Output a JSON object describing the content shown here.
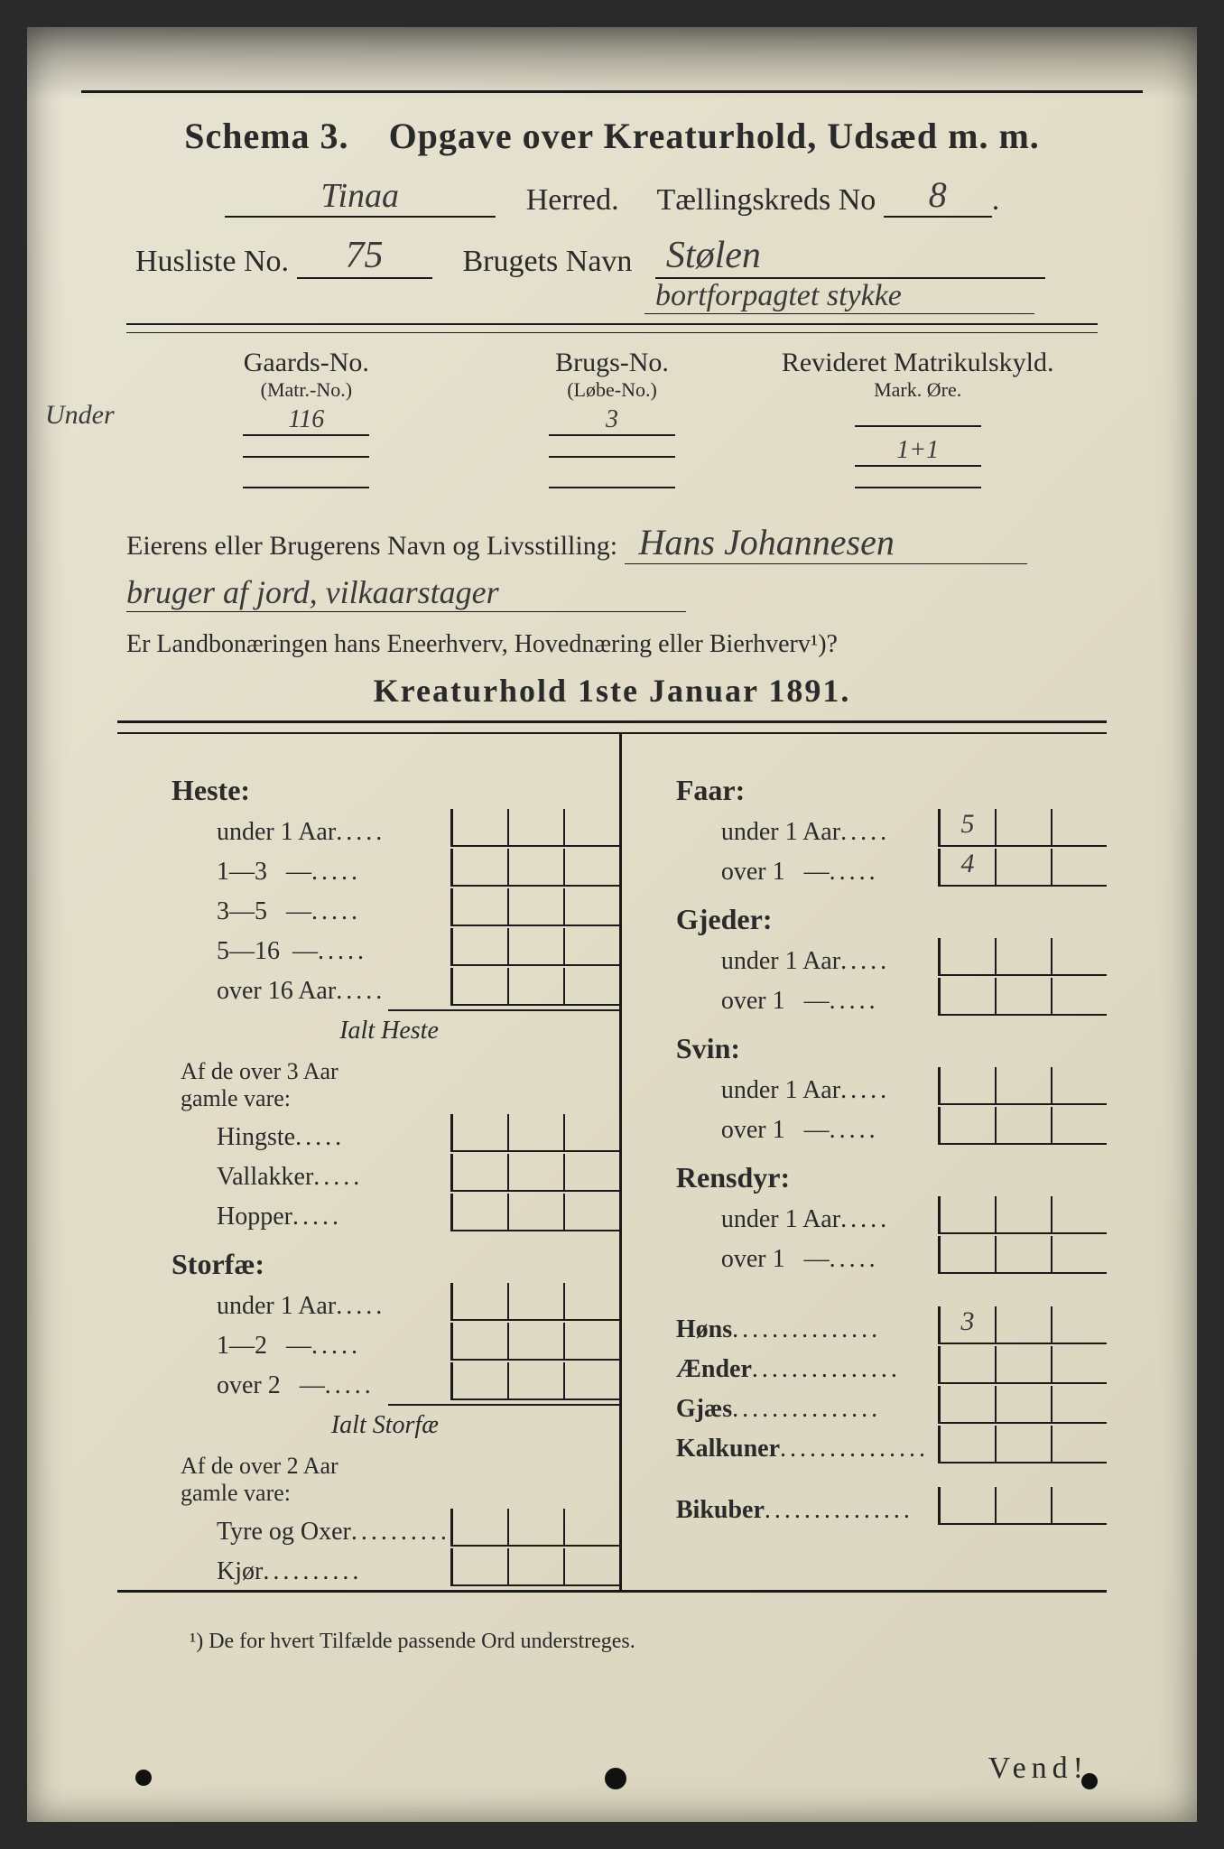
{
  "colors": {
    "paper_light": "#e8e4d4",
    "paper_dark": "#d9d4be",
    "ink": "#1a1a1a",
    "pencil": "#3a3a3a",
    "background": "#2a2a2a"
  },
  "header": {
    "schema": "Schema 3.",
    "title_rest": "Opgave over Kreaturhold, Udsæd m. m.",
    "herred_value": "Tinaa",
    "herred_label": "Herred.",
    "kreds_label": "Tællingskreds No",
    "kreds_value": "8",
    "husliste_label": "Husliste No.",
    "husliste_value": "75",
    "brugets_label": "Brugets Navn",
    "brugets_value": "Stølen",
    "brugets_value_extra": "bortforpagtet stykke"
  },
  "matrikul": {
    "col1_label": "Gaards-No.",
    "col1_sub": "(Matr.-No.)",
    "col2_label": "Brugs-No.",
    "col2_sub": "(Løbe-No.)",
    "col3_label": "Revideret Matrikulskyld.",
    "col3_sub": "Mark.  Øre.",
    "margin_note": "Under",
    "rows": [
      {
        "gaard": "116",
        "brug": "3",
        "skyld": ""
      },
      {
        "gaard": "",
        "brug": "",
        "skyld": "1+1"
      },
      {
        "gaard": "",
        "brug": "",
        "skyld": ""
      }
    ]
  },
  "owner": {
    "label": "Eierens eller Brugerens Navn og Livsstilling:",
    "value": "Hans Johannesen",
    "value_line2": "bruger af jord, vilkaarstager",
    "question": "Er Landbonæringen hans Eneerhverv, Hovednæring eller Bierhverv¹)?"
  },
  "section": {
    "title": "Kreaturhold 1ste Januar 1891."
  },
  "left": {
    "heste": {
      "label": "Heste:",
      "rows": [
        {
          "t": "under 1 Aar",
          "v": [
            "",
            "",
            ""
          ]
        },
        {
          "t": "1—3   —",
          "v": [
            "",
            "",
            ""
          ]
        },
        {
          "t": "3—5   —",
          "v": [
            "",
            "",
            ""
          ]
        },
        {
          "t": "5—16  —",
          "v": [
            "",
            "",
            ""
          ]
        },
        {
          "t": "over 16 Aar",
          "v": [
            "",
            "",
            ""
          ]
        }
      ],
      "sum": "Ialt Heste",
      "sub_label": "Af de over 3 Aar\ngamle vare:",
      "sub_rows": [
        {
          "t": "Hingste",
          "v": [
            "",
            "",
            ""
          ]
        },
        {
          "t": "Vallakker",
          "v": [
            "",
            "",
            ""
          ]
        },
        {
          "t": "Hopper",
          "v": [
            "",
            "",
            ""
          ]
        }
      ]
    },
    "storfae": {
      "label": "Storfæ:",
      "rows": [
        {
          "t": "under 1 Aar",
          "v": [
            "",
            "",
            ""
          ]
        },
        {
          "t": "1—2   —",
          "v": [
            "",
            "",
            ""
          ]
        },
        {
          "t": "over 2   —",
          "v": [
            "",
            "",
            ""
          ]
        }
      ],
      "sum": "Ialt Storfæ",
      "sub_label": "Af de over 2 Aar\ngamle vare:",
      "sub_rows": [
        {
          "t": "Tyre og Oxer",
          "v": [
            "",
            "",
            ""
          ]
        },
        {
          "t": "Kjør",
          "v": [
            "",
            "",
            ""
          ]
        }
      ]
    }
  },
  "right": {
    "faar": {
      "label": "Faar:",
      "rows": [
        {
          "t": "under 1 Aar",
          "v": [
            "5",
            "",
            ""
          ]
        },
        {
          "t": "over 1   —",
          "v": [
            "4",
            "",
            ""
          ]
        }
      ]
    },
    "gjeder": {
      "label": "Gjeder:",
      "rows": [
        {
          "t": "under 1 Aar",
          "v": [
            "",
            "",
            ""
          ]
        },
        {
          "t": "over 1   —",
          "v": [
            "",
            "",
            ""
          ]
        }
      ]
    },
    "svin": {
      "label": "Svin:",
      "rows": [
        {
          "t": "under 1 Aar",
          "v": [
            "",
            "",
            ""
          ]
        },
        {
          "t": "over 1   —",
          "v": [
            "",
            "",
            ""
          ]
        }
      ]
    },
    "rensdyr": {
      "label": "Rensdyr:",
      "rows": [
        {
          "t": "under 1 Aar",
          "v": [
            "",
            "",
            ""
          ]
        },
        {
          "t": "over 1   —",
          "v": [
            "",
            "",
            ""
          ]
        }
      ]
    },
    "poultry": [
      {
        "t": "Høns",
        "v": [
          "3",
          "",
          ""
        ]
      },
      {
        "t": "Ænder",
        "v": [
          "",
          "",
          ""
        ]
      },
      {
        "t": "Gjæs",
        "v": [
          "",
          "",
          ""
        ]
      },
      {
        "t": "Kalkuner",
        "v": [
          "",
          "",
          ""
        ]
      }
    ],
    "bikuber": {
      "t": "Bikuber",
      "v": [
        "",
        "",
        ""
      ]
    }
  },
  "footnote": "¹) De for hvert Tilfælde passende Ord understreges.",
  "vend": "Vend!"
}
